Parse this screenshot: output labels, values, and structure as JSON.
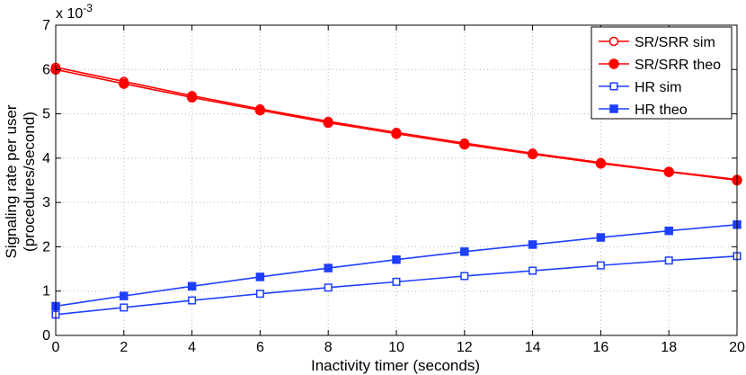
{
  "chart_data": {
    "type": "line",
    "xlabel": "Inactivity timer (seconds)",
    "ylabel_line1": "Signaling rate per user",
    "ylabel_line2": "(procedures/second)",
    "y_multiplier_base": "x 10",
    "y_multiplier_exponent": "-3",
    "xlim": [
      0,
      20
    ],
    "ylim": [
      0,
      7
    ],
    "x_ticks": [
      0,
      2,
      4,
      6,
      8,
      10,
      12,
      14,
      16,
      18,
      20
    ],
    "y_ticks": [
      0,
      1,
      2,
      3,
      4,
      5,
      6,
      7
    ],
    "grid": true,
    "legend_position": "top-right",
    "x": [
      0,
      2,
      4,
      6,
      8,
      10,
      12,
      14,
      16,
      18,
      20
    ],
    "series": [
      {
        "name": "SR/SRR sim",
        "color": "#ff0000",
        "marker": "circle-open",
        "values": [
          6.05,
          5.73,
          5.41,
          5.11,
          4.83,
          4.58,
          4.34,
          4.11,
          3.9,
          3.7,
          3.52
        ]
      },
      {
        "name": "SR/SRR theo",
        "color": "#ff0000",
        "marker": "circle-filled",
        "values": [
          6.0,
          5.68,
          5.37,
          5.08,
          4.8,
          4.55,
          4.31,
          4.09,
          3.88,
          3.69,
          3.5
        ]
      },
      {
        "name": "HR sim",
        "color": "#1f3fff",
        "marker": "square-open",
        "values": [
          0.47,
          0.63,
          0.79,
          0.94,
          1.08,
          1.21,
          1.34,
          1.46,
          1.58,
          1.69,
          1.79
        ]
      },
      {
        "name": "HR theo",
        "color": "#1f3fff",
        "marker": "square-filled",
        "values": [
          0.66,
          0.89,
          1.11,
          1.32,
          1.52,
          1.71,
          1.89,
          2.05,
          2.21,
          2.36,
          2.5
        ]
      }
    ]
  }
}
